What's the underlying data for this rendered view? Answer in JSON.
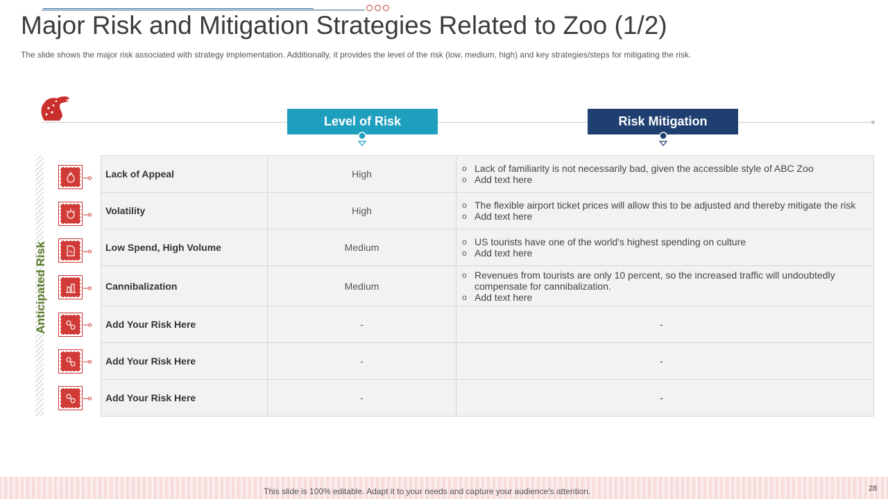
{
  "title": "Major Risk and Mitigation Strategies Related to Zoo (1/2)",
  "subtitle": "The slide shows the major risk associated with strategy implementation.  Additionally, it provides  the level  of the risk (low,  medium,  high) and  key strategies/steps for  mitigating the risk.",
  "headers": {
    "level": "Level of Risk",
    "mitigation": "Risk Mitigation"
  },
  "side_label": "Anticipated Risk",
  "colors": {
    "accent_red": "#d03a37",
    "level_header": "#1e9fbe",
    "mitigation_header": "#1f3f70",
    "side_label": "#5d7b2c"
  },
  "rows": [
    {
      "risk": "Lack of Appeal",
      "level": "High",
      "icon": "fire-icon",
      "mitigation": [
        "Lack of familiarity is not necessarily bad, given the accessible style of ABC Zoo",
        "Add text here"
      ]
    },
    {
      "risk": "Volatility",
      "level": "High",
      "icon": "volatility-icon",
      "mitigation": [
        "The flexible airport ticket prices will allow this to be adjusted and thereby mitigate the risk",
        "Add text here"
      ]
    },
    {
      "risk": "Low Spend, High Volume",
      "level": "Medium",
      "icon": "document-percent-icon",
      "mitigation": [
        "US tourists have one of the world's highest spending on culture",
        "Add text here"
      ]
    },
    {
      "risk": "Cannibalization",
      "level": "Medium",
      "icon": "hazard-icon",
      "mitigation": [
        "Revenues from tourists are only 10 percent, so the increased traffic will undoubtedly compensate for cannibalization.",
        "Add text here"
      ]
    },
    {
      "risk": "Add Your Risk Here",
      "level": "-",
      "icon": "risk-placeholder-icon",
      "mitigation": [
        "-"
      ]
    },
    {
      "risk": "Add Your Risk Here",
      "level": "-",
      "icon": "risk-placeholder-icon",
      "mitigation": [
        "-"
      ]
    },
    {
      "risk": "Add Your Risk Here",
      "level": "-",
      "icon": "risk-placeholder-icon",
      "mitigation": [
        "-"
      ]
    }
  ],
  "footer": "This slide is 100% editable. Adapt it to your needs and capture your audience's attention.",
  "page_number": "28"
}
